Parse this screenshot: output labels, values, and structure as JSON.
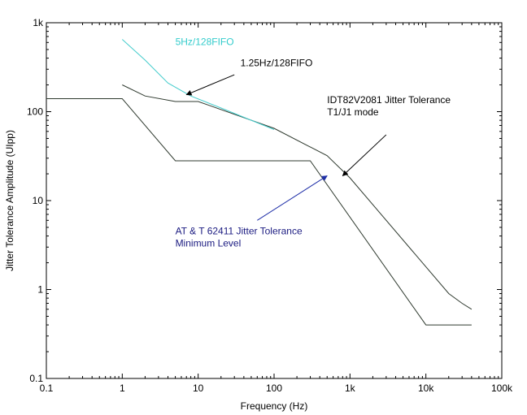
{
  "chart_data": {
    "type": "line",
    "title": "",
    "xlabel": "Frequency (Hz)",
    "ylabel": "Jitter Tolerance Amplitude (UIpp)",
    "xscale": "log",
    "yscale": "log",
    "xlim": [
      0.1,
      100000
    ],
    "ylim": [
      0.1,
      1000
    ],
    "grid": false,
    "x_tick_labels": [
      "0.1",
      "1",
      "10",
      "100",
      "1k",
      "10k",
      "100k"
    ],
    "y_tick_labels": [
      "0.1",
      "1",
      "10",
      "100",
      "1k"
    ],
    "colors": {
      "axis": "#000000",
      "line_dark": "#2f3a2f",
      "line_cyan": "#44cccc",
      "annot_black": "#000000",
      "annot_cyan": "#33cccc",
      "annot_blue": "#1a1a80",
      "arrow_blue": "#1f2fa8"
    },
    "series": [
      {
        "x": [
          0.1,
          1,
          5,
          300,
          10000,
          40000
        ],
        "y": [
          140,
          140,
          28,
          28,
          0.4,
          0.4
        ]
      },
      {
        "x": [
          1,
          2,
          5,
          10,
          100,
          500,
          1000,
          20000,
          30000,
          40000
        ],
        "y": [
          200,
          150,
          130,
          130,
          65,
          32,
          18,
          0.9,
          0.7,
          0.6
        ]
      },
      {
        "x": [
          1,
          2,
          4,
          8,
          20,
          100
        ],
        "y": [
          650,
          380,
          210,
          150,
          110,
          63
        ]
      }
    ],
    "annotations": [
      {
        "lines": [
          "5Hz/128FIFO"
        ],
        "x": 5,
        "y": 560,
        "color": "annot_cyan",
        "arrow": null
      },
      {
        "lines": [
          "1.25Hz/128FIFO"
        ],
        "x": 36,
        "y": 325,
        "color": "annot_black",
        "arrow": {
          "from": [
            30,
            260
          ],
          "to": [
            7,
            155
          ],
          "color": "annot_black"
        }
      },
      {
        "lines": [
          "IDT82V2081 Jitter Tolerance",
          "T1/J1 mode"
        ],
        "x": 500,
        "y": 125,
        "color": "annot_black",
        "arrow": {
          "from": [
            3000,
            55
          ],
          "to": [
            800,
            19
          ],
          "color": "annot_black"
        }
      },
      {
        "lines": [
          "AT & T 62411 Jitter Tolerance",
          "Minimum Level"
        ],
        "x": 5,
        "y": 4.2,
        "color": "annot_blue",
        "arrow": {
          "from": [
            60,
            6
          ],
          "to": [
            500,
            19
          ],
          "color": "arrow_blue"
        }
      }
    ]
  }
}
